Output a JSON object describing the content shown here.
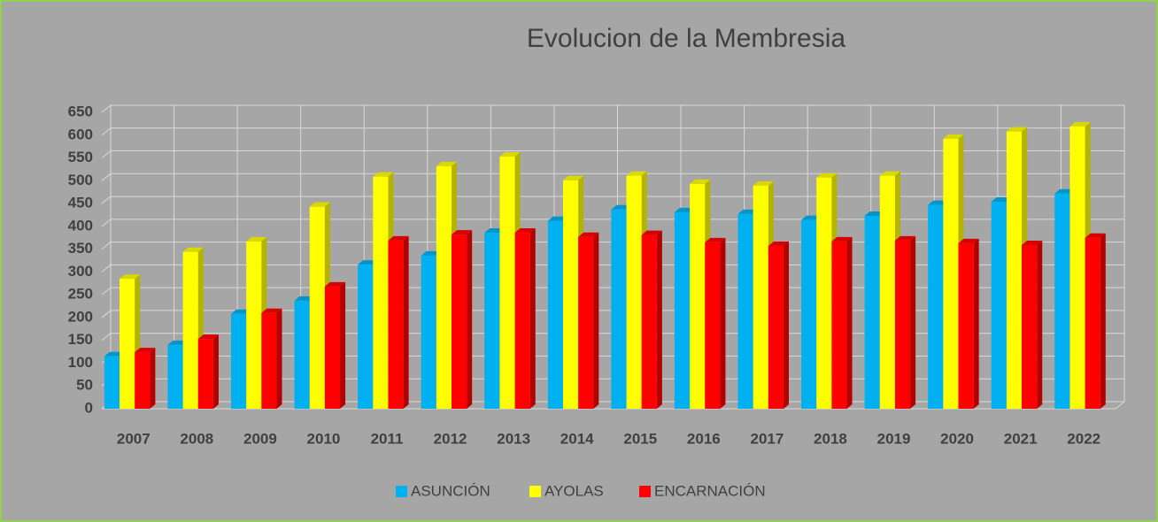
{
  "chart_data": {
    "type": "bar",
    "title": "Evolucion de la Membresia",
    "categories": [
      "2007",
      "2008",
      "2009",
      "2010",
      "2011",
      "2012",
      "2013",
      "2014",
      "2015",
      "2016",
      "2017",
      "2018",
      "2019",
      "2020",
      "2021",
      "2022"
    ],
    "series": [
      {
        "name": "ASUNCIÓN",
        "color": "#00b0f0",
        "values": [
          115,
          140,
          208,
          237,
          316,
          336,
          386,
          412,
          437,
          431,
          427,
          414,
          423,
          447,
          454,
          472
        ]
      },
      {
        "name": "AYOLAS",
        "color": "#ffff00",
        "values": [
          285,
          344,
          367,
          443,
          509,
          532,
          553,
          501,
          511,
          493,
          489,
          507,
          511,
          592,
          608,
          619
        ]
      },
      {
        "name": "ENCARNACIÓN",
        "color": "#ff0000",
        "values": [
          124,
          153,
          210,
          268,
          369,
          382,
          386,
          377,
          381,
          365,
          357,
          367,
          369,
          363,
          359,
          375
        ]
      }
    ],
    "ylim": [
      0,
      650
    ],
    "yticks": [
      0,
      50,
      100,
      150,
      200,
      250,
      300,
      350,
      400,
      450,
      500,
      550,
      600,
      650
    ],
    "grid": true,
    "legend": "bottom"
  }
}
